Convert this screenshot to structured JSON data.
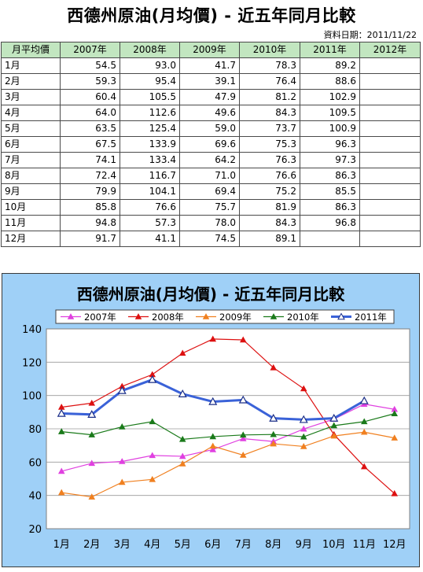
{
  "title": "西德州原油(月均價) - 近五年同月比較",
  "data_date": "資料日期：2011/11/22",
  "table": {
    "headers": [
      "月平均價",
      "2007年",
      "2008年",
      "2009年",
      "2010年",
      "2011年",
      "2012年"
    ],
    "rows": [
      [
        "1月",
        "54.5",
        "93.0",
        "41.7",
        "78.3",
        "89.2",
        ""
      ],
      [
        "2月",
        "59.3",
        "95.4",
        "39.1",
        "76.4",
        "88.6",
        ""
      ],
      [
        "3月",
        "60.4",
        "105.5",
        "47.9",
        "81.2",
        "102.9",
        ""
      ],
      [
        "4月",
        "64.0",
        "112.6",
        "49.6",
        "84.3",
        "109.5",
        ""
      ],
      [
        "5月",
        "63.5",
        "125.4",
        "59.0",
        "73.7",
        "100.9",
        ""
      ],
      [
        "6月",
        "67.5",
        "133.9",
        "69.6",
        "75.3",
        "96.3",
        ""
      ],
      [
        "7月",
        "74.1",
        "133.4",
        "64.2",
        "76.3",
        "97.3",
        ""
      ],
      [
        "8月",
        "72.4",
        "116.7",
        "71.0",
        "76.6",
        "86.3",
        ""
      ],
      [
        "9月",
        "79.9",
        "104.1",
        "69.4",
        "75.2",
        "85.5",
        ""
      ],
      [
        "10月",
        "85.8",
        "76.6",
        "75.7",
        "81.9",
        "86.3",
        ""
      ],
      [
        "11月",
        "94.8",
        "57.3",
        "78.0",
        "84.3",
        "96.8",
        ""
      ],
      [
        "12月",
        "91.7",
        "41.1",
        "74.5",
        "89.1",
        "",
        ""
      ]
    ]
  },
  "chart_data": {
    "type": "line",
    "title": "西德州原油(月均價) - 近五年同月比較",
    "categories": [
      "1月",
      "2月",
      "3月",
      "4月",
      "5月",
      "6月",
      "7月",
      "8月",
      "9月",
      "10月",
      "11月",
      "12月"
    ],
    "ylim": [
      20,
      140
    ],
    "yticks": [
      20,
      40,
      60,
      80,
      100,
      120,
      140
    ],
    "grid": true,
    "legend_position": "top",
    "series": [
      {
        "name": "2007年",
        "color": "#e040e0",
        "marker": "triangle-filled",
        "values": [
          54.5,
          59.3,
          60.4,
          64.0,
          63.5,
          67.5,
          74.1,
          72.4,
          79.9,
          85.8,
          94.8,
          91.7
        ]
      },
      {
        "name": "2008年",
        "color": "#dd1111",
        "marker": "triangle-filled",
        "values": [
          93.0,
          95.4,
          105.5,
          112.6,
          125.4,
          133.9,
          133.4,
          116.7,
          104.1,
          76.6,
          57.3,
          41.1
        ]
      },
      {
        "name": "2009年",
        "color": "#f08020",
        "marker": "triangle-filled",
        "values": [
          41.7,
          39.1,
          47.9,
          49.6,
          59.0,
          69.6,
          64.2,
          71.0,
          69.4,
          75.7,
          78.0,
          74.5
        ]
      },
      {
        "name": "2010年",
        "color": "#1a7a1a",
        "marker": "triangle-filled",
        "values": [
          78.3,
          76.4,
          81.2,
          84.3,
          73.7,
          75.3,
          76.3,
          76.6,
          75.2,
          81.9,
          84.3,
          89.1
        ]
      },
      {
        "name": "2011年",
        "color": "#3a62d8",
        "marker": "triangle-open",
        "bold": true,
        "values": [
          89.2,
          88.6,
          102.9,
          109.5,
          100.9,
          96.3,
          97.3,
          86.3,
          85.5,
          86.3,
          96.8,
          null
        ]
      }
    ]
  }
}
